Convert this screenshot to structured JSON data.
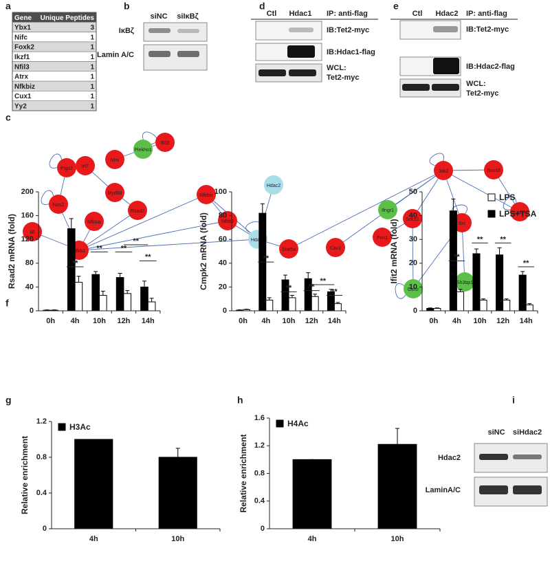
{
  "panel_labels": {
    "a": "a",
    "b": "b",
    "c": "c",
    "d": "d",
    "e": "e",
    "f": "f",
    "g": "g",
    "h": "h",
    "i": "i"
  },
  "table": {
    "header": [
      "Gene",
      "Unique Peptides"
    ],
    "rows": [
      [
        "Ybx1",
        3
      ],
      [
        "Nifc",
        1
      ],
      [
        "Foxk2",
        1
      ],
      [
        "Ikzf1",
        1
      ],
      [
        "Nfil3",
        1
      ],
      [
        "Atrx",
        1
      ],
      [
        "Nfkbiz",
        1
      ],
      [
        "Cux1",
        1
      ],
      [
        "Yy2",
        1
      ]
    ]
  },
  "blots": {
    "b": {
      "columns": [
        "siNC",
        "siIκBζ"
      ],
      "rows": [
        "IκBζ",
        "Lamin A/C"
      ]
    },
    "d": {
      "columns": [
        "Ctl",
        "Hdac1"
      ],
      "header": "IP: anti-flag",
      "rows": [
        "IB:Tet2-myc",
        "IB:Hdac1-flag",
        [
          "WCL:",
          "Tet2-myc"
        ]
      ]
    },
    "e": {
      "columns": [
        "Ctl",
        "Hdac2"
      ],
      "header": "IP: anti-flag",
      "rows": [
        "IB:Tet2-myc",
        "IB:Hdac2-flag",
        [
          "WCL:",
          "Tet2-myc"
        ]
      ]
    },
    "i": {
      "columns": [
        "siNC",
        "siHdac2"
      ],
      "rows": [
        "Hdac2",
        "LaminA/C"
      ]
    }
  },
  "network": {
    "nodes": [
      {
        "label": "Ptgs2",
        "color": "#e8191b",
        "self_loop": true
      },
      {
        "label": "Nos2",
        "color": "#e8191b",
        "self_loop": true
      },
      {
        "label": "Il6",
        "color": "#e8191b",
        "self_loop": false
      },
      {
        "label": "Nfkb1",
        "color": "#e8191b",
        "self_loop": false
      },
      {
        "label": "Irf7",
        "color": "#e8191b",
        "self_loop": false
      },
      {
        "label": "Nmi",
        "color": "#e8191b",
        "self_loop": false
      },
      {
        "label": "Plekho1",
        "color": "#5cbf4a",
        "self_loop": true
      },
      {
        "label": "Ifi35",
        "color": "#e8191b",
        "self_loop": false
      },
      {
        "label": "Myd88",
        "color": "#e8191b",
        "self_loop": false
      },
      {
        "label": "Nfkbia",
        "color": "#e8191b",
        "self_loop": false
      },
      {
        "label": "Rsad2",
        "color": "#e8191b",
        "self_loop": false
      },
      {
        "label": "Nfkbiz",
        "color": "#e8191b",
        "self_loop": false
      },
      {
        "label": "Nfkb2",
        "color": "#e8191b",
        "self_loop": false
      },
      {
        "label": "Hdac2",
        "color": "#a9dde8",
        "self_loop": false
      },
      {
        "label": "Hdac1",
        "color": "#a9dde8",
        "self_loop": true
      },
      {
        "label": "Stat5a",
        "color": "#e8191b",
        "self_loop": false
      },
      {
        "label": "Cav1",
        "color": "#e8191b",
        "self_loop": false
      },
      {
        "label": "Jak2",
        "color": "#e8191b",
        "self_loop": true
      },
      {
        "label": "Socs3",
        "color": "#e8191b",
        "self_loop": false
      },
      {
        "label": "Lmo4",
        "color": "#e8191b",
        "self_loop": true
      },
      {
        "label": "Ifngr1",
        "color": "#5cbf4a",
        "self_loop": false
      },
      {
        "label": "Socs1",
        "color": "#e8191b",
        "self_loop": false
      },
      {
        "label": "Src",
        "color": "#e8191b",
        "self_loop": true
      },
      {
        "label": "Pim1",
        "color": "#e8191b",
        "self_loop": false
      },
      {
        "label": "Csf1r",
        "color": "#5cbf4a",
        "self_loop": true
      },
      {
        "label": "Sh3bp1",
        "color": "#5cbf4a",
        "self_loop": false
      }
    ],
    "edges": [
      [
        0,
        1
      ],
      [
        1,
        3
      ],
      [
        2,
        3
      ],
      [
        3,
        9
      ],
      [
        3,
        10
      ],
      [
        3,
        11
      ],
      [
        3,
        12
      ],
      [
        3,
        14
      ],
      [
        4,
        8
      ],
      [
        5,
        6
      ],
      [
        6,
        7
      ],
      [
        8,
        10
      ],
      [
        11,
        12
      ],
      [
        11,
        14
      ],
      [
        12,
        14
      ],
      [
        13,
        14
      ],
      [
        14,
        15
      ],
      [
        15,
        17
      ],
      [
        16,
        17
      ],
      [
        17,
        18
      ],
      [
        17,
        19
      ],
      [
        18,
        19
      ],
      [
        17,
        20
      ],
      [
        17,
        21
      ],
      [
        17,
        22
      ],
      [
        21,
        23
      ],
      [
        21,
        24
      ],
      [
        22,
        24
      ],
      [
        22,
        25
      ]
    ]
  },
  "chart_data": [
    {
      "type": "bar",
      "y_label": "Rsad2 mRNA (fold)",
      "categories": [
        "0h",
        "4h",
        "10h",
        "12h",
        "14h"
      ],
      "series": [
        {
          "color": "#000000",
          "values": [
            1,
            138,
            61,
            56,
            40
          ],
          "errors": [
            0.5,
            17,
            5,
            7,
            10
          ]
        },
        {
          "color": "#ffffff",
          "values": [
            1,
            48,
            26,
            29,
            15
          ],
          "errors": [
            0.5,
            10,
            7,
            5,
            6
          ]
        }
      ],
      "ylim": [
        0,
        200
      ],
      "yticks": [
        0,
        40,
        80,
        120,
        160,
        200
      ],
      "annotations": [
        {
          "text": "**",
          "span": [
            "4h",
            "4h"
          ],
          "y": 74
        },
        {
          "text": "**",
          "span": [
            "10h",
            "10h"
          ],
          "y": 99
        },
        {
          "text": "**",
          "span": [
            "12h",
            "12h"
          ],
          "y": 99
        },
        {
          "text": "**",
          "span": [
            "12h",
            "14h"
          ],
          "y": 111
        },
        {
          "text": "**",
          "span": [
            "14h",
            "14h"
          ],
          "y": 84
        }
      ]
    },
    {
      "type": "bar",
      "y_label": "Cmpk2 mRNA (fold)",
      "categories": [
        "0h",
        "4h",
        "10h",
        "12h",
        "14h"
      ],
      "series": [
        {
          "color": "#000000",
          "values": [
            0.5,
            82,
            26,
            27,
            16
          ],
          "errors": [
            0.3,
            8,
            4,
            5,
            2
          ]
        },
        {
          "color": "#ffffff",
          "values": [
            1,
            9,
            11,
            12,
            6
          ],
          "errors": [
            0.3,
            2,
            2,
            2,
            1
          ]
        }
      ],
      "ylim": [
        0,
        100
      ],
      "yticks": [
        0,
        20,
        40,
        60,
        80,
        100
      ],
      "annotations": [
        {
          "text": "**",
          "span": [
            "4h",
            "4h"
          ],
          "y": 41
        },
        {
          "text": "**",
          "span": [
            "10h",
            "10h"
          ],
          "y": 16
        },
        {
          "text": "**",
          "span": [
            "12h",
            "12h"
          ],
          "y": 17
        },
        {
          "text": "**",
          "span": [
            "12h",
            "14h"
          ],
          "y": 22
        },
        {
          "text": "**",
          "span": [
            "14h",
            "14h"
          ],
          "y": 13
        }
      ]
    },
    {
      "type": "bar",
      "y_label": "Ifit2 mRNA (fold)",
      "categories": [
        "0h",
        "4h",
        "10h",
        "12h",
        "14h"
      ],
      "series": [
        {
          "name": "LPS+TSA",
          "color": "#000000",
          "values": [
            1,
            42,
            24,
            23.5,
            15
          ],
          "errors": [
            0.2,
            5,
            2,
            3,
            1.5
          ]
        },
        {
          "name": "LPS",
          "color": "#ffffff",
          "values": [
            1,
            8,
            4.5,
            4.5,
            2.5
          ],
          "errors": [
            0.2,
            1,
            0.5,
            0.5,
            0.5
          ]
        }
      ],
      "ylim": [
        0,
        50
      ],
      "yticks": [
        0,
        10,
        20,
        30,
        40,
        50
      ],
      "legend": "top-right",
      "annotations": [
        {
          "text": "**",
          "span": [
            "4h",
            "4h"
          ],
          "y": 21
        },
        {
          "text": "**",
          "span": [
            "10h",
            "10h"
          ],
          "y": 28.5
        },
        {
          "text": "**",
          "span": [
            "12h",
            "12h"
          ],
          "y": 28.5
        },
        {
          "text": "**",
          "span": [
            "14h",
            "14h"
          ],
          "y": 18.5
        }
      ]
    },
    {
      "type": "bar",
      "y_label": "Relative enrichment",
      "categories": [
        "4h",
        "10h"
      ],
      "series": [
        {
          "name": "H3Ac",
          "color": "#000000",
          "values": [
            1,
            0.8
          ],
          "errors": [
            0,
            0.1
          ]
        }
      ],
      "ylim": [
        0,
        1.2
      ],
      "yticks": [
        0,
        0.4,
        0.8,
        1.2
      ],
      "legend": "top-left"
    },
    {
      "type": "bar",
      "y_label": "Relative enrichment",
      "categories": [
        "4h",
        "10h"
      ],
      "series": [
        {
          "name": "H4Ac",
          "color": "#000000",
          "values": [
            1,
            1.22
          ],
          "errors": [
            0,
            0.23
          ]
        }
      ],
      "ylim": [
        0,
        1.6
      ],
      "yticks": [
        0,
        0.4,
        0.8,
        1.2,
        1.6
      ],
      "legend": "top-left"
    }
  ]
}
